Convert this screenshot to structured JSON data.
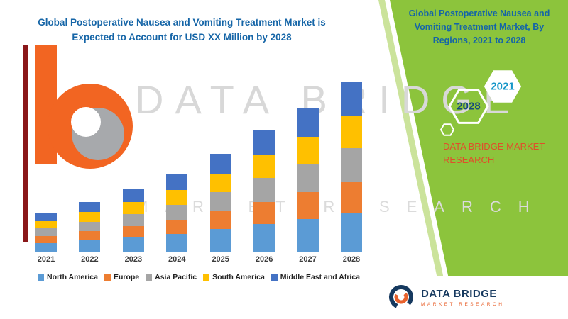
{
  "header": {
    "title_line1": "Global Postoperative Nausea and Vomiting Treatment Market is",
    "title_line2": "Expected to Account for USD XX Million by 2028"
  },
  "side_panel": {
    "title": "Global Postoperative Nausea and Vomiting Treatment Market, By Regions, 2021 to 2028",
    "hexagons": [
      {
        "label": "2028"
      },
      {
        "label": "2021"
      }
    ],
    "brand_line1": "DATA BRIDGE MARKET",
    "brand_line2": "RESEARCH"
  },
  "watermark": {
    "line1": "DATA BRIDGE",
    "line2": "MARKET RESEARCH"
  },
  "footer_logo": {
    "name": "DATA BRIDGE",
    "subtitle": "MARKET RESEARCH"
  },
  "colors": {
    "title_blue": "#1565A7",
    "panel_green": "#8CC43C",
    "panel_green_light": "#CBE39B",
    "brand_orange": "#DF4F2B",
    "accent_red": "#8A1719",
    "logo_navy": "#16395F",
    "logo_orange": "#E8612C",
    "watermark_gray": "#D8D8D8"
  },
  "chart_data": {
    "type": "bar",
    "stacked": true,
    "title": "Global Postoperative Nausea and Vomiting Treatment Market is Expected to Account for USD XX Million by 2028",
    "categories": [
      "2021",
      "2022",
      "2023",
      "2024",
      "2025",
      "2026",
      "2027",
      "2028"
    ],
    "series": [
      {
        "name": "North America",
        "color": "#5B9BD5",
        "values": [
          2.4,
          3.1,
          3.9,
          4.8,
          6.2,
          7.6,
          9.0,
          10.6
        ]
      },
      {
        "name": "Europe",
        "color": "#ED7D31",
        "values": [
          1.9,
          2.5,
          3.1,
          3.9,
          4.9,
          6.1,
          7.3,
          8.6
        ]
      },
      {
        "name": "Asia Pacific",
        "color": "#A5A5A5",
        "values": [
          2.1,
          2.7,
          3.4,
          4.2,
          5.3,
          6.6,
          7.9,
          9.3
        ]
      },
      {
        "name": "South America",
        "color": "#FFC000",
        "values": [
          2.0,
          2.6,
          3.2,
          4.0,
          5.0,
          6.2,
          7.4,
          8.7
        ]
      },
      {
        "name": "Middle East and Africa",
        "color": "#4472C4",
        "values": [
          2.2,
          2.8,
          3.5,
          4.4,
          5.5,
          6.8,
          8.1,
          9.6
        ]
      }
    ],
    "xlabel": "",
    "ylabel": "",
    "ylim": [
      0,
      50
    ],
    "grid": false,
    "value_axis_visible": false,
    "legend_position": "bottom"
  }
}
